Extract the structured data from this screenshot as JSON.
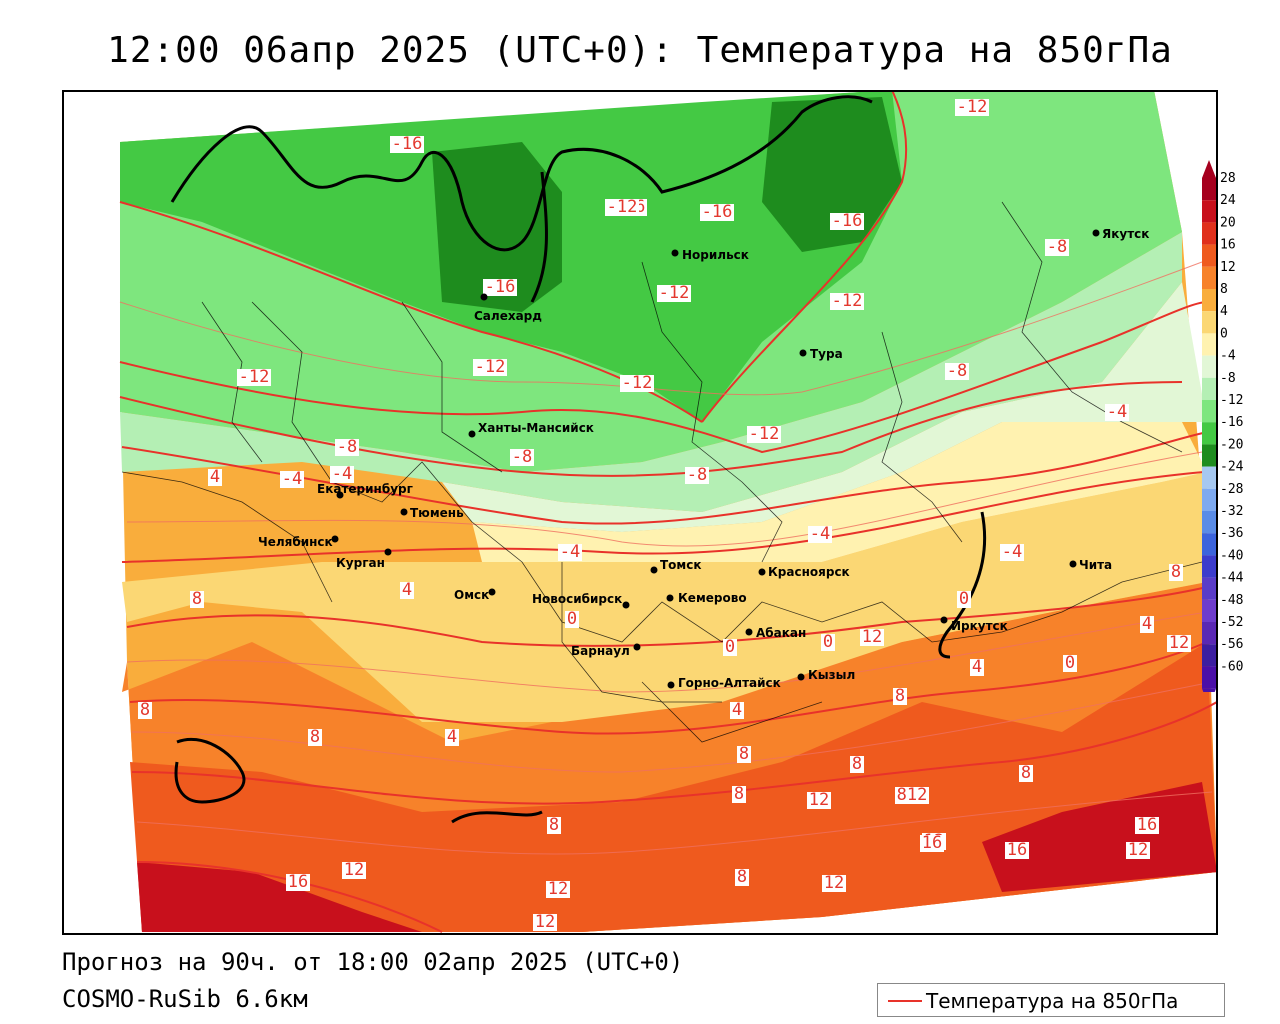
{
  "title": "12:00 06апр 2025 (UTC+0): Температура на 850гПа",
  "footer": {
    "forecast": "Прогноз на 90ч. от 18:00 02апр 2025 (UTC+0)",
    "model": "COSMO-RuSib 6.6км"
  },
  "legend": {
    "label": "Температура на 850гПа",
    "line_color": "#e8322a"
  },
  "colorbar": {
    "labels": [
      "28",
      "24",
      "20",
      "16",
      "12",
      "8",
      "4",
      "0",
      "-4",
      "-8",
      "-12",
      "-16",
      "-20",
      "-24",
      "-28",
      "-32",
      "-36",
      "-40",
      "-44",
      "-48",
      "-52",
      "-56",
      "-60"
    ],
    "colors": [
      "#a6001e",
      "#c8101c",
      "#e0301c",
      "#ef5a1e",
      "#f7822a",
      "#f9ad3c",
      "#fbd774",
      "#fff2b0",
      "#e2f7d6",
      "#b4efb4",
      "#7ee67e",
      "#44c944",
      "#1e8c1e",
      "#a6c8f0",
      "#7eaaf0",
      "#5a8ce6",
      "#3c64dc",
      "#3c3ccc",
      "#5a3cc8",
      "#6e3ccc",
      "#5a28b4",
      "#3c1ea0",
      "#4a0fa8"
    ]
  },
  "isotherm_labels": [
    "-16",
    "-16",
    "-16",
    "-16",
    "-16",
    "-12",
    "-12",
    "-12",
    "-12",
    "-12",
    "-12",
    "-12",
    "-12",
    "-8",
    "-8",
    "-8",
    "-8",
    "-8",
    "-4",
    "-4",
    "-4",
    "-4",
    "-4",
    "-4",
    "4",
    "4",
    "4",
    "4",
    "4",
    "4",
    "0",
    "0",
    "0",
    "0",
    "0",
    "0",
    "8",
    "8",
    "8",
    "8",
    "8",
    "8",
    "8",
    "8",
    "8",
    "8",
    "8",
    "812",
    "12",
    "12",
    "12",
    "12",
    "12",
    "12",
    "12",
    "12",
    "12",
    "16",
    "16",
    "16",
    "16"
  ],
  "cities": [
    {
      "name": "Салехард"
    },
    {
      "name": "Норильск"
    },
    {
      "name": "Якутск"
    },
    {
      "name": "Тура"
    },
    {
      "name": "Ханты-Мансийск"
    },
    {
      "name": "Екатеринбург"
    },
    {
      "name": "Тюмень"
    },
    {
      "name": "Челябинск"
    },
    {
      "name": "Курган"
    },
    {
      "name": "Омск"
    },
    {
      "name": "Новосибирск"
    },
    {
      "name": "Томск"
    },
    {
      "name": "Кемерово"
    },
    {
      "name": "Красноярск"
    },
    {
      "name": "Абакан"
    },
    {
      "name": "Барнаул"
    },
    {
      "name": "Горно-Алтайск"
    },
    {
      "name": "Кызыл"
    },
    {
      "name": "Иркутск"
    },
    {
      "name": "Чита"
    }
  ]
}
